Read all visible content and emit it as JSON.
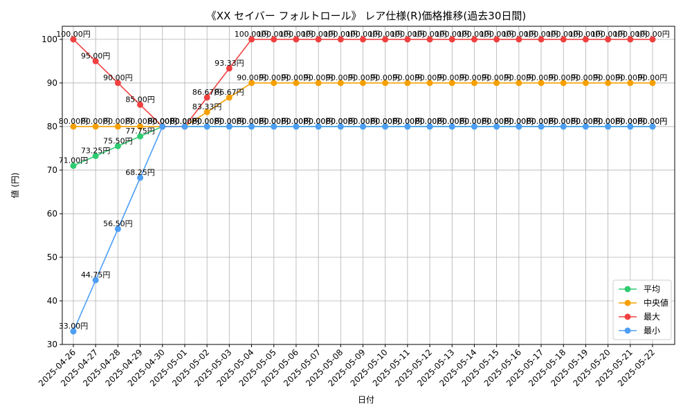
{
  "chart_data": {
    "type": "line",
    "title": "《XX セイバー フォルトロール》 レア仕様(R)価格推移(過去30日間)",
    "xlabel": "日付",
    "ylabel": "値 (円)",
    "ylim": [
      30,
      103
    ],
    "yticks": [
      30,
      40,
      50,
      60,
      70,
      80,
      90,
      100
    ],
    "grid": true,
    "legend_position": "bottom-right",
    "label_suffix": "円",
    "x": [
      "2025-04-26",
      "2025-04-27",
      "2025-04-28",
      "2025-04-29",
      "2025-04-30",
      "2025-05-01",
      "2025-05-02",
      "2025-05-03",
      "2025-05-04",
      "2025-05-05",
      "2025-05-06",
      "2025-05-07",
      "2025-05-08",
      "2025-05-09",
      "2025-05-10",
      "2025-05-11",
      "2025-05-12",
      "2025-05-13",
      "2025-05-14",
      "2025-05-15",
      "2025-05-16",
      "2025-05-17",
      "2025-05-18",
      "2025-05-19",
      "2025-05-20",
      "2025-05-21",
      "2025-05-22"
    ],
    "series": [
      {
        "name": "平均",
        "color": "#2ecc71",
        "values": [
          71.0,
          73.25,
          75.5,
          77.75,
          80.0,
          80.0,
          80.0,
          80.0,
          80.0,
          80.0,
          80.0,
          80.0,
          80.0,
          80.0,
          80.0,
          80.0,
          80.0,
          80.0,
          80.0,
          80.0,
          80.0,
          80.0,
          80.0,
          80.0,
          80.0,
          80.0,
          80.0
        ]
      },
      {
        "name": "中央値",
        "color": "#f5a000",
        "values": [
          80.0,
          80.0,
          80.0,
          80.0,
          80.0,
          80.0,
          83.33,
          86.67,
          90.0,
          90.0,
          90.0,
          90.0,
          90.0,
          90.0,
          90.0,
          90.0,
          90.0,
          90.0,
          90.0,
          90.0,
          90.0,
          90.0,
          90.0,
          90.0,
          90.0,
          90.0,
          90.0
        ]
      },
      {
        "name": "最大",
        "color": "#f04040",
        "values": [
          100.0,
          95.0,
          90.0,
          85.0,
          80.0,
          80.0,
          86.67,
          93.33,
          100.0,
          100.0,
          100.0,
          100.0,
          100.0,
          100.0,
          100.0,
          100.0,
          100.0,
          100.0,
          100.0,
          100.0,
          100.0,
          100.0,
          100.0,
          100.0,
          100.0,
          100.0,
          100.0
        ]
      },
      {
        "name": "最小",
        "color": "#4d9ef5",
        "values": [
          33.0,
          44.75,
          56.5,
          68.25,
          80.0,
          80.0,
          80.0,
          80.0,
          80.0,
          80.0,
          80.0,
          80.0,
          80.0,
          80.0,
          80.0,
          80.0,
          80.0,
          80.0,
          80.0,
          80.0,
          80.0,
          80.0,
          80.0,
          80.0,
          80.0,
          80.0,
          80.0
        ]
      }
    ]
  }
}
